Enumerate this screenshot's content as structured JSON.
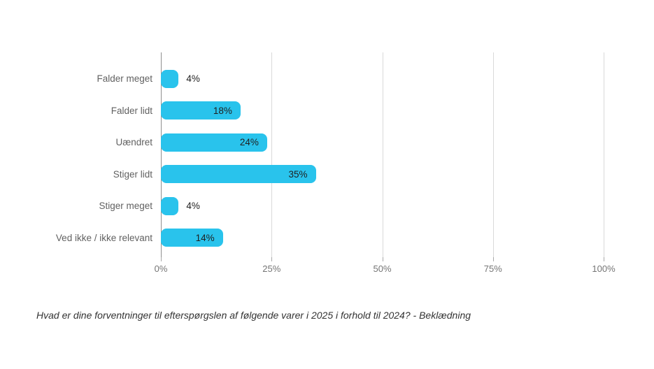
{
  "chart_data": {
    "type": "bar",
    "orientation": "horizontal",
    "title": "",
    "xlabel": "",
    "ylabel": "",
    "categories": [
      "Falder meget",
      "Falder lidt",
      "Uændret",
      "Stiger lidt",
      "Stiger meget",
      "Ved ikke / ikke relevant"
    ],
    "values": [
      4,
      18,
      24,
      35,
      4,
      14
    ],
    "value_labels": [
      "4%",
      "18%",
      "24%",
      "35%",
      "4%",
      "14%"
    ],
    "xlim": [
      0,
      100
    ],
    "x_tick_values": [
      0,
      25,
      50,
      75,
      100
    ],
    "x_tick_labels": [
      "0%",
      "25%",
      "50%",
      "75%",
      "100%"
    ],
    "grid": "vertical gridlines on",
    "legend_position": "none",
    "bar_color": "#29C3EC"
  },
  "caption": "Hvad er dine forventninger til efterspørgslen af følgende varer i 2025 i forhold til 2024? - Beklædning",
  "colors": {
    "background": "#ffffff",
    "bar": "#29C3EC",
    "axis_line": "#8f8f8f",
    "gridline": "#d9d9d9",
    "category_text": "#616161",
    "value_text": "#1f1f1f",
    "tick_text": "#757575",
    "caption_text": "#333333"
  }
}
